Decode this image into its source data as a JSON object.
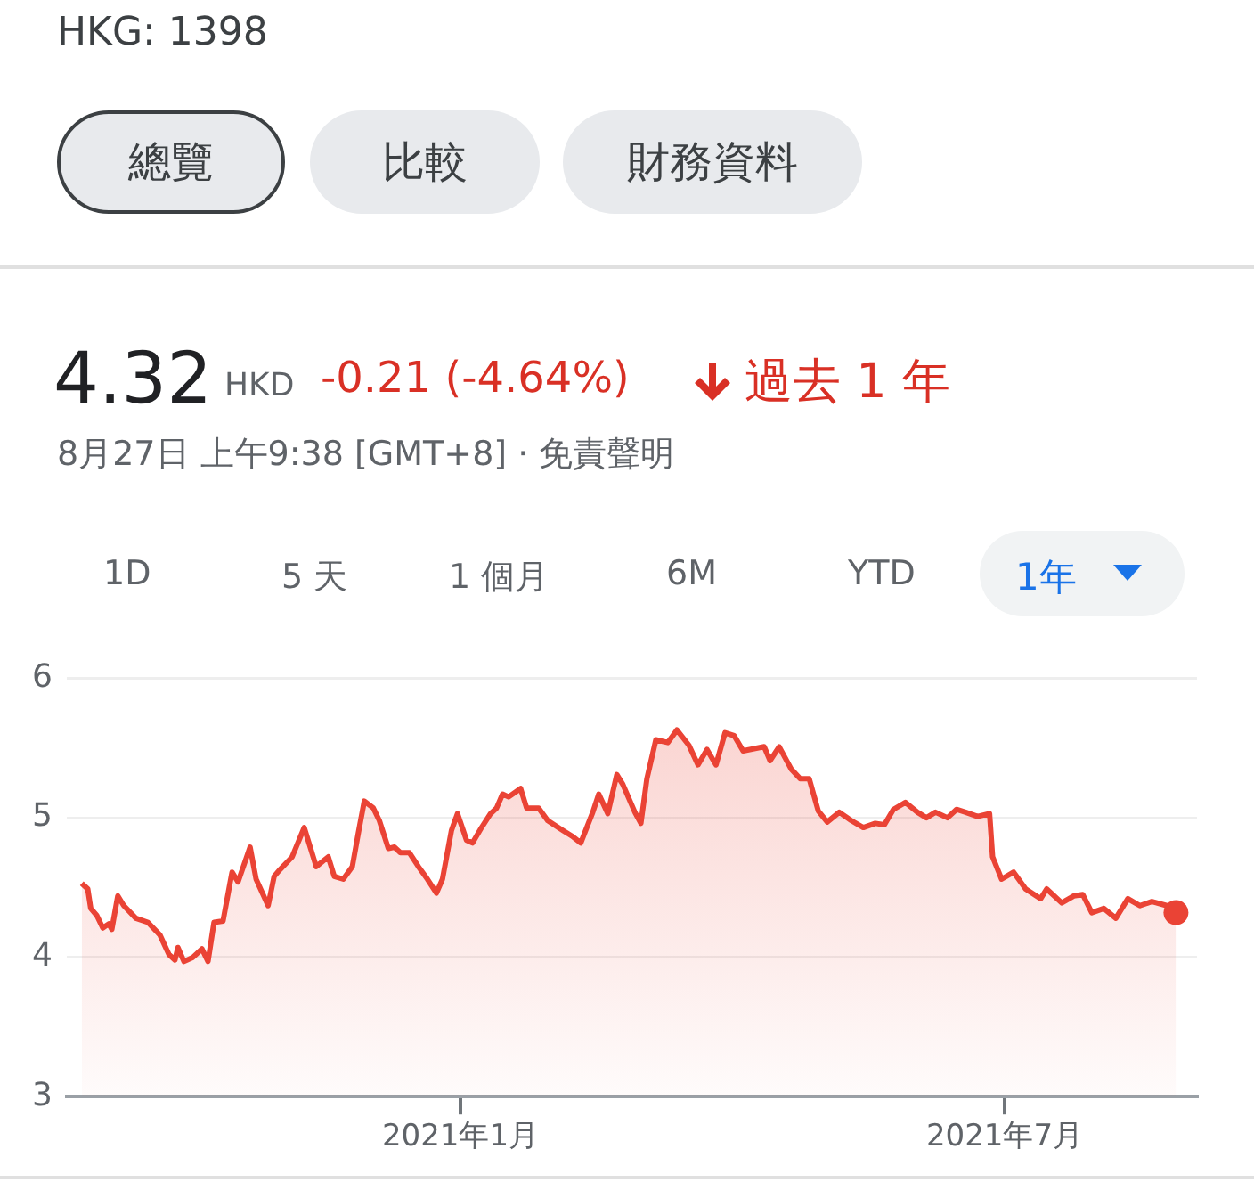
{
  "chart_data": {
    "type": "area",
    "title": "HKG: 1398",
    "annotations": [
      "總覽",
      "比較",
      "財務資料",
      "4.32",
      "HKD",
      "-0.21 (-4.64%)",
      "過去 1 年",
      "8月27日 上午9:38 [GMT+8] · 免責聲明",
      "1D",
      "5 天",
      "1 個月",
      "6M",
      "YTD",
      "1年"
    ],
    "x": [
      "2020-08-28",
      "2020-08-30",
      "2020-08-31",
      "2020-09-02",
      "2020-09-04",
      "2020-09-06",
      "2020-09-07",
      "2020-09-09",
      "2020-09-11",
      "2020-09-15",
      "2020-09-19",
      "2020-09-23",
      "2020-09-26",
      "2020-09-28",
      "2020-09-29",
      "2020-10-01",
      "2020-10-04",
      "2020-10-07",
      "2020-10-09",
      "2020-10-11",
      "2020-10-14",
      "2020-10-17",
      "2020-10-19",
      "2020-10-23",
      "2020-10-25",
      "2020-10-29",
      "2020-10-31",
      "2020-11-02",
      "2020-11-06",
      "2020-11-10",
      "2020-11-14",
      "2020-11-18",
      "2020-11-20",
      "2020-11-23",
      "2020-11-26",
      "2020-11-28",
      "2020-11-30",
      "2020-12-03",
      "2020-12-05",
      "2020-12-08",
      "2020-12-10",
      "2020-12-12",
      "2020-12-15",
      "2020-12-18",
      "2020-12-21",
      "2020-12-24",
      "2020-12-26",
      "2020-12-29",
      "2020-12-31",
      "2021-01-03",
      "2021-01-05",
      "2021-01-08",
      "2021-01-11",
      "2021-01-13",
      "2021-01-15",
      "2021-01-17",
      "2021-01-21",
      "2021-01-23",
      "2021-01-27",
      "2021-01-30",
      "2021-02-04",
      "2021-02-07",
      "2021-02-10",
      "2021-02-14",
      "2021-02-16",
      "2021-02-19",
      "2021-02-22",
      "2021-02-24",
      "2021-02-28",
      "2021-03-02",
      "2021-03-04",
      "2021-03-07",
      "2021-03-11",
      "2021-03-14",
      "2021-03-18",
      "2021-03-21",
      "2021-03-24",
      "2021-03-27",
      "2021-03-30",
      "2021-04-02",
      "2021-04-05",
      "2021-04-12",
      "2021-04-14",
      "2021-04-17",
      "2021-04-21",
      "2021-04-24",
      "2021-04-27",
      "2021-04-30",
      "2021-05-03",
      "2021-05-07",
      "2021-05-11",
      "2021-05-15",
      "2021-05-19",
      "2021-05-22",
      "2021-05-25",
      "2021-05-29",
      "2021-06-02",
      "2021-06-05",
      "2021-06-08",
      "2021-06-12",
      "2021-06-15",
      "2021-06-18",
      "2021-06-22",
      "2021-06-26",
      "2021-06-27",
      "2021-06-30",
      "2021-07-04",
      "2021-07-08",
      "2021-07-13",
      "2021-07-15",
      "2021-07-20",
      "2021-07-24",
      "2021-07-27",
      "2021-07-30",
      "2021-08-03",
      "2021-08-07",
      "2021-08-11",
      "2021-08-15",
      "2021-08-19",
      "2021-08-24",
      "2021-08-27"
    ],
    "series": [
      {
        "color": "#ea4335",
        "values": [
          4.53,
          4.49,
          4.35,
          4.3,
          4.21,
          4.24,
          4.2,
          4.44,
          4.37,
          4.28,
          4.25,
          4.16,
          4.02,
          3.98,
          4.07,
          3.97,
          4.0,
          4.06,
          3.97,
          4.25,
          4.26,
          4.61,
          4.54,
          4.79,
          4.56,
          4.37,
          4.58,
          4.63,
          4.72,
          4.93,
          4.65,
          4.72,
          4.58,
          4.56,
          4.65,
          4.89,
          5.12,
          5.07,
          4.98,
          4.78,
          4.79,
          4.75,
          4.75,
          4.65,
          4.56,
          4.46,
          4.56,
          4.91,
          5.03,
          4.84,
          4.82,
          4.93,
          5.03,
          5.07,
          5.17,
          5.15,
          5.21,
          5.07,
          5.07,
          4.98,
          4.91,
          4.87,
          4.82,
          5.04,
          5.17,
          5.03,
          5.31,
          5.24,
          5.04,
          4.96,
          5.28,
          5.56,
          5.54,
          5.63,
          5.52,
          5.38,
          5.49,
          5.38,
          5.61,
          5.59,
          5.48,
          5.51,
          5.41,
          5.51,
          5.35,
          5.28,
          5.28,
          5.05,
          4.97,
          5.04,
          4.98,
          4.93,
          4.96,
          4.95,
          5.06,
          5.11,
          5.04,
          5.0,
          5.04,
          5.0,
          5.06,
          5.04,
          5.01,
          5.03,
          4.72,
          4.56,
          4.61,
          4.49,
          4.42,
          4.49,
          4.39,
          4.44,
          4.45,
          4.32,
          4.35,
          4.28,
          4.42,
          4.37,
          4.4,
          4.37,
          4.32
        ]
      }
    ],
    "xlim": [
      "2020-08-23",
      "2021-09-03"
    ],
    "xticks": [
      {
        "value": "2021-01-01",
        "label": "2021年1月"
      },
      {
        "value": "2021-07-01",
        "label": "2021年7月"
      }
    ],
    "ylim": [
      3,
      6
    ],
    "yticks": [
      3,
      4,
      5,
      6
    ],
    "grid": "y"
  }
}
